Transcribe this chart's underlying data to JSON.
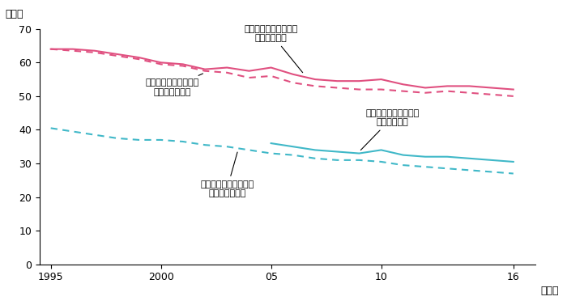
{
  "years": [
    1995,
    1996,
    1997,
    1998,
    1999,
    2000,
    2001,
    2002,
    2003,
    2004,
    2005,
    2006,
    2007,
    2008,
    2009,
    2010,
    2011,
    2012,
    2013,
    2014,
    2015,
    2016
  ],
  "daigaku_seiki": [
    64.0,
    64.0,
    63.5,
    62.5,
    61.5,
    60.0,
    59.5,
    58.0,
    58.5,
    57.5,
    58.5,
    56.5,
    55.0,
    54.5,
    54.5,
    55.0,
    53.5,
    52.5,
    53.0,
    53.0,
    52.5,
    52.0
  ],
  "daigaku_full": [
    64.0,
    63.5,
    63.0,
    62.0,
    61.0,
    59.5,
    59.0,
    57.5,
    57.0,
    55.5,
    56.0,
    54.0,
    53.0,
    52.5,
    52.0,
    52.0,
    51.5,
    51.0,
    51.5,
    51.0,
    50.5,
    50.0
  ],
  "koukou_seiki": [
    null,
    null,
    null,
    null,
    null,
    null,
    null,
    null,
    null,
    null,
    36.0,
    35.0,
    34.0,
    33.5,
    33.0,
    34.0,
    32.5,
    32.0,
    32.0,
    31.5,
    31.0,
    30.5
  ],
  "koukou_full": [
    40.5,
    39.5,
    38.5,
    37.5,
    37.0,
    37.0,
    36.5,
    35.5,
    35.0,
    34.0,
    33.0,
    32.5,
    31.5,
    31.0,
    31.0,
    30.5,
    29.5,
    29.0,
    28.5,
    28.0,
    27.5,
    27.0
  ],
  "color_pink": "#e05080",
  "color_cyan": "#40b8c8",
  "ylabel_unit": "（％）",
  "xlabel_unit": "（年）",
  "yticks": [
    0,
    10,
    20,
    30,
    40,
    50,
    60,
    70
  ],
  "xticks": [
    1995,
    2000,
    2005,
    2010,
    2016
  ],
  "xtick_labels": [
    "1995",
    "2000",
    "05",
    "10",
    "16"
  ],
  "ylim": [
    0,
    70
  ],
  "xlim": [
    1994.5,
    2017
  ],
  "annotations": {
    "daigaku_seiki_label": "大卒生え抜き社員割合\n（正規雇用）",
    "daigaku_full_label": "大卒生え抜き社員割合\n（フルタイム）",
    "koukou_seiki_label": "高卒生え抜き社員割合\n（正規雇用）",
    "koukou_full_label": "高卒生え抜き社員割合\n（フルタイム）"
  }
}
